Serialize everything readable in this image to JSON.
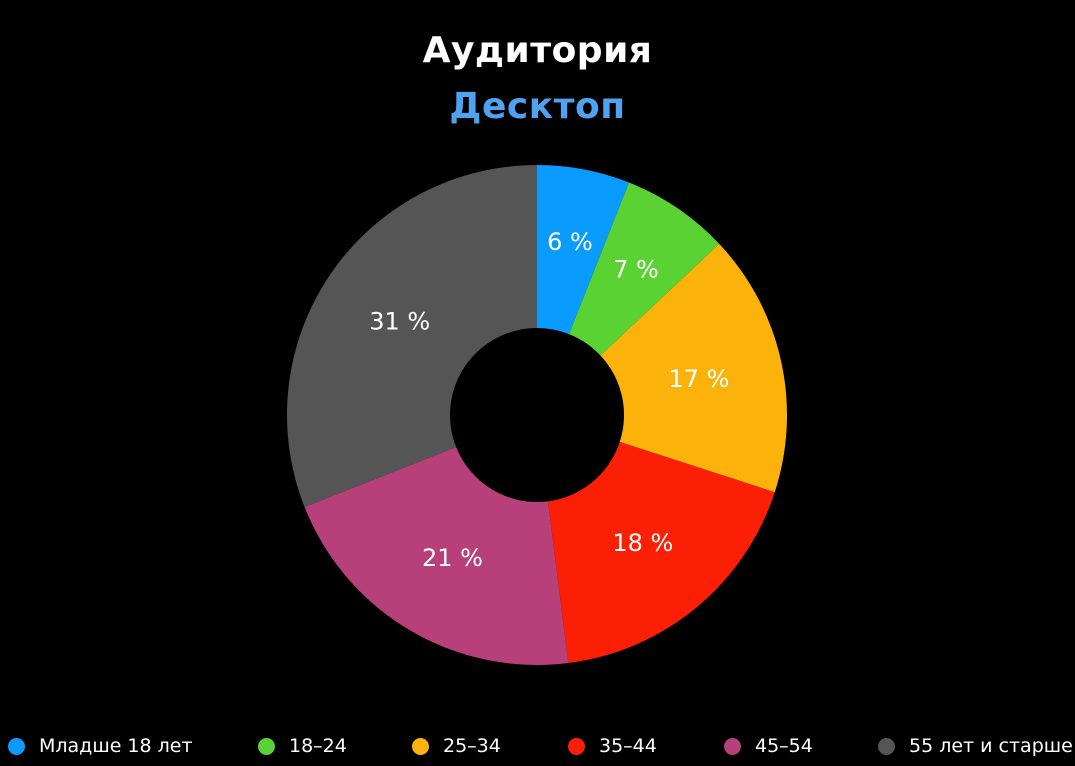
{
  "chart_data": {
    "type": "pie",
    "title": "Аудитория",
    "subtitle": "Десктоп",
    "donut": true,
    "legend_position": "bottom",
    "categories": [
      "Младше 18 лет",
      "18–24",
      "25–34",
      "35–44",
      "45–54",
      "55 лет и старше"
    ],
    "values": [
      6,
      7,
      17,
      18,
      21,
      31
    ],
    "data_labels": [
      "6 %",
      "7 %",
      "17 %",
      "18 %",
      "21 %",
      "31 %"
    ],
    "colors": [
      "#0a9bff",
      "#5ad234",
      "#fbb20a",
      "#fa1f05",
      "#b7407a",
      "#555555"
    ]
  }
}
